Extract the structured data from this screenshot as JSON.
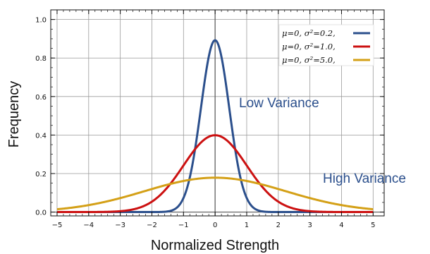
{
  "chart_data": {
    "type": "line",
    "xlabel": "Normalized Strength",
    "ylabel": "Frequency",
    "xlim": [
      -5.2,
      5.35
    ],
    "ylim": [
      -0.02,
      1.05
    ],
    "x_ticks": [
      -5,
      -4,
      -3,
      -2,
      -1,
      0,
      1,
      2,
      3,
      4,
      5
    ],
    "x_tick_labels": [
      "−5",
      "−4",
      "−3",
      "−2",
      "−1",
      "0",
      "1",
      "2",
      "3",
      "4",
      "5"
    ],
    "y_ticks": [
      0.0,
      0.2,
      0.4,
      0.6,
      0.8,
      1.0
    ],
    "y_tick_labels": [
      "0.0",
      "0.2",
      "0.4",
      "0.6",
      "0.8",
      "1.0"
    ],
    "grid": true,
    "legend_position": "top-right",
    "series": [
      {
        "name": "μ=0,  σ²=0.2,",
        "mu": 0,
        "variance": 0.2,
        "color": "#2b4f8c"
      },
      {
        "name": "μ=0,  σ²=1.0,",
        "mu": 0,
        "variance": 1.0,
        "color": "#cc1111"
      },
      {
        "name": "μ=0,  σ²=5.0,",
        "mu": 0,
        "variance": 5.0,
        "color": "#d4a017"
      }
    ],
    "annotations": [
      {
        "text": "Low Variance",
        "color": "#2b4f8c"
      },
      {
        "text": "High Variance",
        "color": "#2b4f8c"
      }
    ]
  }
}
